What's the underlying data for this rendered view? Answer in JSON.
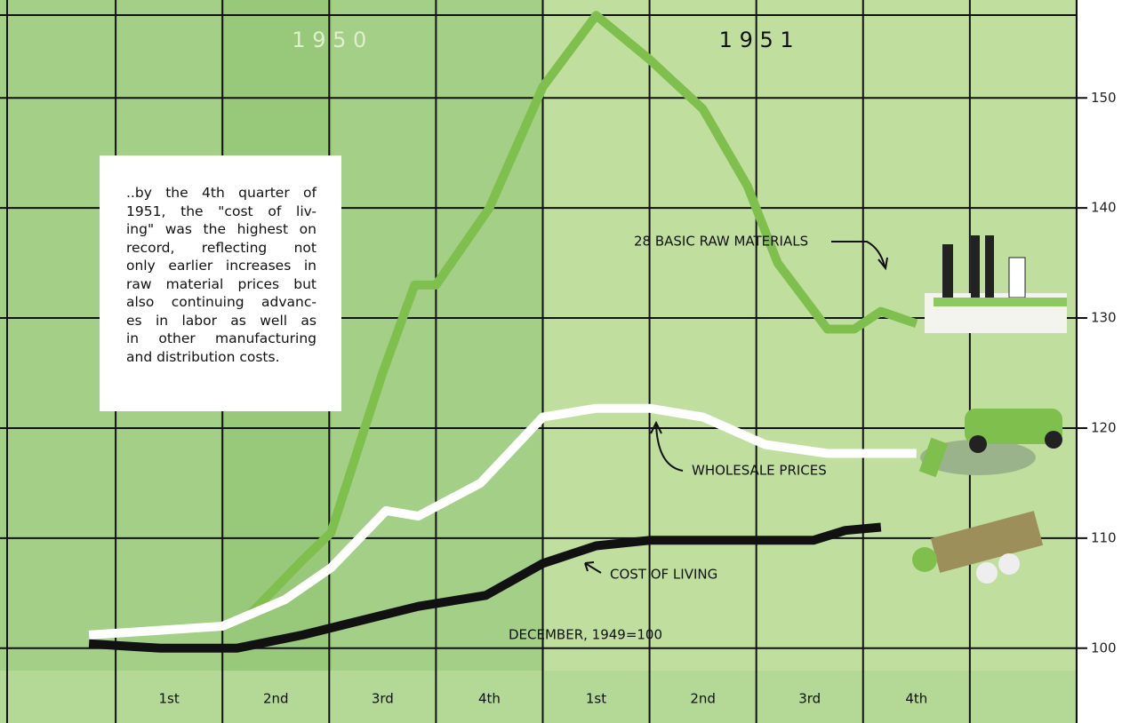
{
  "chart_data": {
    "type": "line",
    "years": [
      "1 9 5 0",
      "1 9 5 1"
    ],
    "categories": [
      "1st",
      "2nd",
      "3rd",
      "4th",
      "1st",
      "2nd",
      "3rd",
      "4th"
    ],
    "annotation": "DECEMBER, 1949=100",
    "note_lines": [
      "..by the 4th quarter of",
      "1951, the \"cost of liv-",
      "ing\" was the highest on",
      "record, reflecting not",
      "only earlier increases in",
      "raw material prices but",
      "also continuing advanc-",
      "es in labor as well as",
      "in other manufacturing",
      "and distribution costs."
    ],
    "series": [
      {
        "name": "28 BASIC RAW MATERIALS",
        "color": "#7fbf4d",
        "x": [
          3.75,
          5.25,
          6.05,
          7.5,
          8.4,
          9,
          10.5,
          12,
          13.5,
          15,
          16.5,
          17.75,
          18.6,
          20,
          20.75,
          21.5,
          22.5
        ],
        "values": [
          103,
          108,
          110.5,
          125,
          133,
          133,
          140,
          151,
          157.5,
          153.5,
          149,
          142,
          135,
          129,
          129,
          130.6,
          129.5
        ]
      },
      {
        "name": "WHOLESALE PRICES",
        "color": "#ffffff",
        "x": [
          -0.75,
          3,
          4.75,
          6.05,
          7.6,
          8.5,
          10.25,
          12,
          13.5,
          15,
          16.5,
          18.25,
          20,
          22.5
        ],
        "values": [
          101.2,
          102,
          104.4,
          107.3,
          112.5,
          112,
          115,
          121,
          121.8,
          121.8,
          121,
          118.5,
          117.7,
          117.7
        ]
      },
      {
        "name": "COST OF LIVING",
        "color": "#111111",
        "x": [
          -0.75,
          1.25,
          3.4,
          5.25,
          6.75,
          8.5,
          10.4,
          12,
          13.5,
          15,
          16.5,
          18.1,
          19.6,
          20.5,
          21.5
        ],
        "values": [
          100.4,
          100,
          100,
          101.2,
          102.4,
          103.8,
          104.8,
          107.7,
          109.3,
          109.8,
          109.8,
          109.8,
          109.8,
          110.7,
          111
        ]
      }
    ],
    "xlim": [
      -3.25,
      28.5
    ],
    "ylim": [
      93.2,
      158.9
    ],
    "yticks": [
      100,
      110,
      120,
      130,
      140,
      150
    ],
    "grid": true
  }
}
